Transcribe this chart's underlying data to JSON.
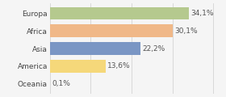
{
  "categories": [
    "Europa",
    "Africa",
    "Asia",
    "America",
    "Oceania"
  ],
  "values": [
    34.1,
    30.1,
    22.2,
    13.6,
    0.1
  ],
  "labels": [
    "34,1%",
    "30,1%",
    "22,2%",
    "13,6%",
    "0,1%"
  ],
  "bar_colors": [
    "#b5c98e",
    "#f0b888",
    "#7a96c4",
    "#f5d87a",
    "#f0b888"
  ],
  "background_color": "#f5f5f5",
  "xlim": [
    0,
    42
  ],
  "bar_height": 0.72,
  "label_fontsize": 6.5,
  "tick_fontsize": 6.5,
  "grid_xticks": [
    0,
    10,
    20,
    30,
    40
  ]
}
